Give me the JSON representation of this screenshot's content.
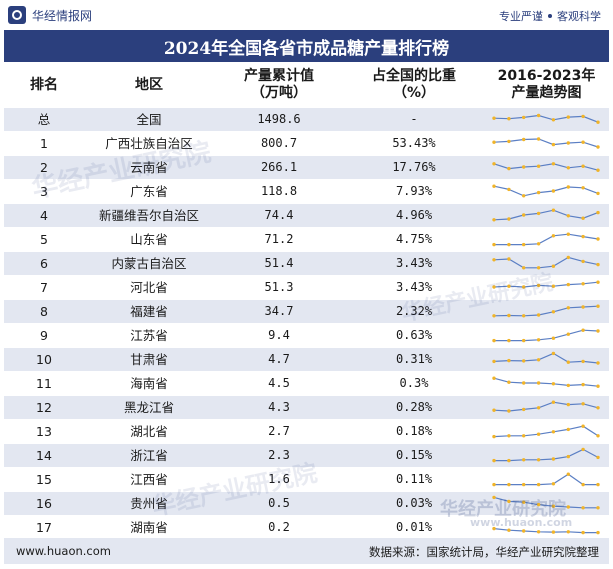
{
  "header": {
    "logo_text": "华经情报网",
    "tagline_a": "专业严谨",
    "tagline_b": "客观科学"
  },
  "title": "2024年全国各省市成品糖产量排行榜",
  "columns": {
    "rank": "排名",
    "region": "地区",
    "output": "产量累计值\n（万吨）",
    "share": "占全国的比重\n（%）",
    "trend": "2016-2023年\n产量趋势图"
  },
  "footer": {
    "url": "www.huaon.com",
    "source": "数据来源：国家统计局，华经产业研究院整理"
  },
  "watermark": "华经产业研究院",
  "watermark_url": "www.huaon.com",
  "colors": {
    "header_bg": "#2b3f7d",
    "row_alt": "#e3e7f1",
    "trend_line": "#5b7fc4",
    "trend_point": "#f0b429"
  },
  "chart_data": {
    "type": "table",
    "title": "2024年全国各省市成品糖产量排行榜",
    "unit": "万吨",
    "rows": [
      {
        "rank": "总",
        "region": "全国",
        "output": "1498.6",
        "share": "-",
        "trend": [
          0.55,
          0.52,
          0.6,
          0.72,
          0.45,
          0.62,
          0.66,
          0.3
        ]
      },
      {
        "rank": "1",
        "region": "广西壮族自治区",
        "output": "800.7",
        "share": "53.43%",
        "trend": [
          0.55,
          0.6,
          0.72,
          0.75,
          0.4,
          0.5,
          0.55,
          0.25
        ]
      },
      {
        "rank": "2",
        "region": "云南省",
        "output": "266.1",
        "share": "17.76%",
        "trend": [
          0.7,
          0.4,
          0.5,
          0.55,
          0.7,
          0.45,
          0.55,
          0.3
        ]
      },
      {
        "rank": "3",
        "region": "广东省",
        "output": "118.8",
        "share": "7.93%",
        "trend": [
          0.8,
          0.6,
          0.2,
          0.4,
          0.5,
          0.75,
          0.7,
          0.35
        ]
      },
      {
        "rank": "4",
        "region": "新疆维吾尔自治区",
        "output": "74.4",
        "share": "4.96%",
        "trend": [
          0.2,
          0.25,
          0.5,
          0.6,
          0.8,
          0.45,
          0.3,
          0.65
        ]
      },
      {
        "rank": "5",
        "region": "山东省",
        "output": "71.2",
        "share": "4.75%",
        "trend": [
          0.15,
          0.15,
          0.15,
          0.2,
          0.7,
          0.8,
          0.65,
          0.5
        ]
      },
      {
        "rank": "6",
        "region": "内蒙古自治区",
        "output": "51.4",
        "share": "3.43%",
        "trend": [
          0.7,
          0.75,
          0.2,
          0.2,
          0.3,
          0.85,
          0.6,
          0.4
        ]
      },
      {
        "rank": "7",
        "region": "河北省",
        "output": "51.3",
        "share": "3.43%",
        "trend": [
          0.5,
          0.55,
          0.5,
          0.6,
          0.55,
          0.65,
          0.7,
          0.8
        ]
      },
      {
        "rank": "8",
        "region": "福建省",
        "output": "34.7",
        "share": "2.32%",
        "trend": [
          0.2,
          0.22,
          0.2,
          0.25,
          0.45,
          0.7,
          0.75,
          0.8
        ]
      },
      {
        "rank": "9",
        "region": "江苏省",
        "output": "9.4",
        "share": "0.63%",
        "trend": [
          0.15,
          0.15,
          0.15,
          0.2,
          0.3,
          0.55,
          0.8,
          0.75
        ]
      },
      {
        "rank": "10",
        "region": "甘肃省",
        "output": "4.7",
        "share": "0.31%",
        "trend": [
          0.35,
          0.4,
          0.38,
          0.45,
          0.85,
          0.3,
          0.35,
          0.25
        ]
      },
      {
        "rank": "11",
        "region": "海南省",
        "output": "4.5",
        "share": "0.3%",
        "trend": [
          0.8,
          0.55,
          0.5,
          0.5,
          0.45,
          0.35,
          0.4,
          0.3
        ]
      },
      {
        "rank": "12",
        "region": "黑龙江省",
        "output": "4.3",
        "share": "0.28%",
        "trend": [
          0.3,
          0.25,
          0.35,
          0.45,
          0.8,
          0.65,
          0.7,
          0.45
        ]
      },
      {
        "rank": "13",
        "region": "湖北省",
        "output": "2.7",
        "share": "0.18%",
        "trend": [
          0.15,
          0.2,
          0.2,
          0.3,
          0.45,
          0.6,
          0.8,
          0.2
        ]
      },
      {
        "rank": "14",
        "region": "浙江省",
        "output": "2.3",
        "share": "0.15%",
        "trend": [
          0.15,
          0.15,
          0.2,
          0.2,
          0.25,
          0.4,
          0.85,
          0.35
        ]
      },
      {
        "rank": "15",
        "region": "江西省",
        "output": "1.6",
        "share": "0.11%",
        "trend": [
          0.15,
          0.15,
          0.15,
          0.15,
          0.2,
          0.8,
          0.15,
          0.15
        ]
      },
      {
        "rank": "16",
        "region": "贵州省",
        "output": "0.5",
        "share": "0.03%",
        "trend": [
          0.85,
          0.6,
          0.55,
          0.4,
          0.3,
          0.25,
          0.2,
          0.2
        ]
      },
      {
        "rank": "17",
        "region": "湖南省",
        "output": "0.2",
        "share": "0.01%",
        "trend": [
          0.4,
          0.3,
          0.25,
          0.2,
          0.18,
          0.2,
          0.15,
          0.15
        ]
      }
    ]
  }
}
